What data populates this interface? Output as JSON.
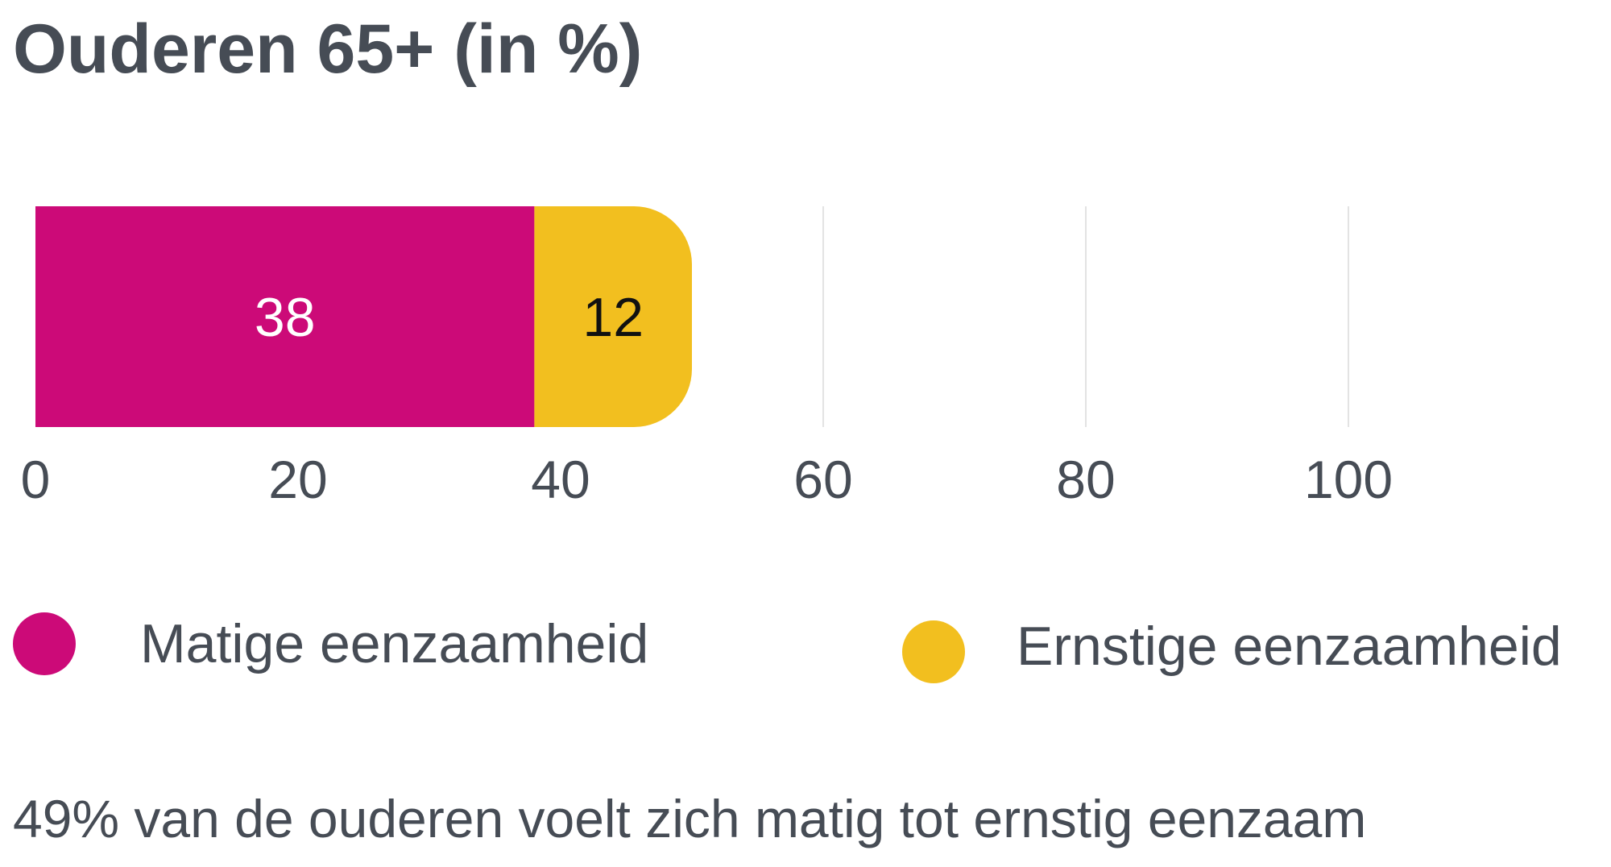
{
  "title": "Ouderen 65+ (in %)",
  "footnote": "49% van de ouderen voelt zich matig tot ernstig eenzaam",
  "colors": {
    "matig": "#cc0a78",
    "ernstig": "#f2bf1f",
    "grid": "#e3e3e3",
    "text": "#464c55"
  },
  "chart_data": {
    "type": "bar",
    "orientation": "horizontal",
    "stacked": true,
    "title": "Ouderen 65+ (in %)",
    "categories": [
      ""
    ],
    "series": [
      {
        "name": "Matige eenzaamheid",
        "values": [
          38
        ],
        "color": "#cc0a78",
        "label_color": "#ffffff"
      },
      {
        "name": "Ernstige eenzaamheid",
        "values": [
          12
        ],
        "color": "#f2bf1f",
        "label_color": "#111111"
      }
    ],
    "xlim": [
      0,
      100
    ],
    "xticks": [
      "0",
      "20",
      "40",
      "60",
      "80",
      "100"
    ],
    "grid": true,
    "legend": "bottom"
  }
}
